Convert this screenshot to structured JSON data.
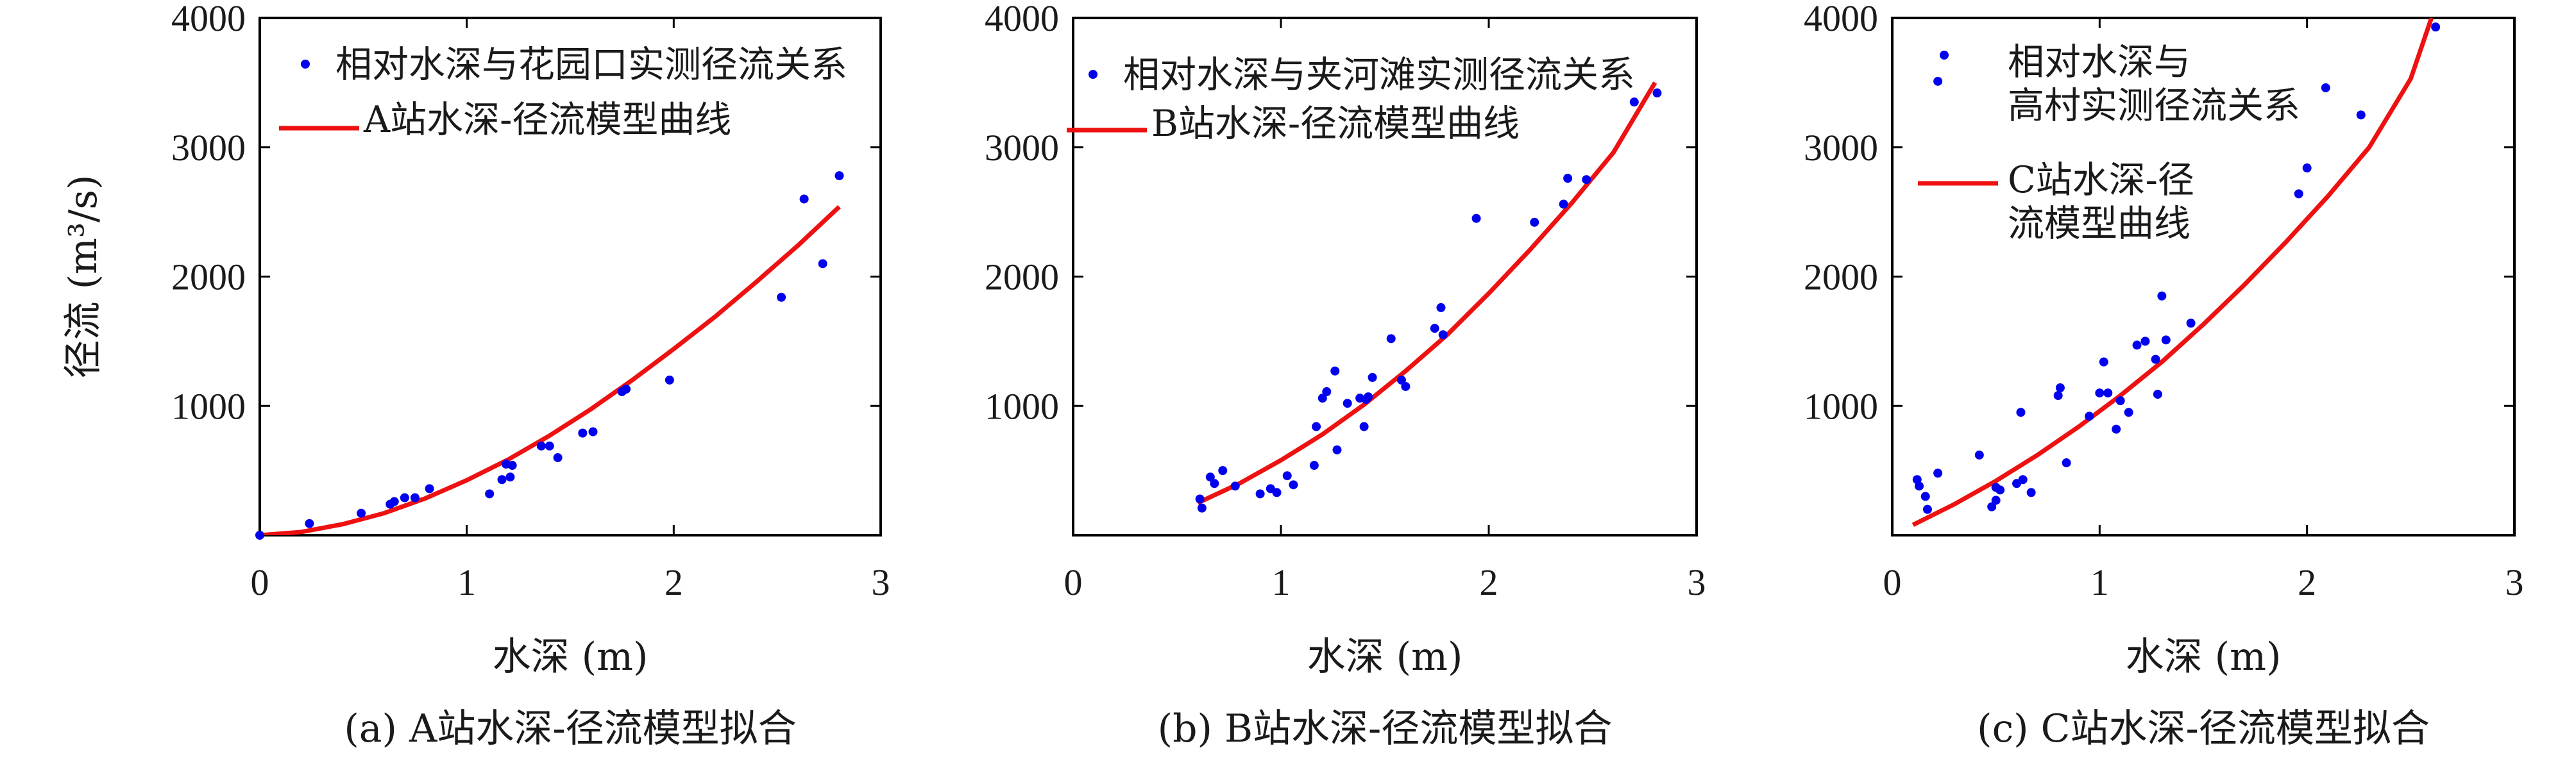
{
  "chart_data": [
    {
      "type": "scatter",
      "caption": "(a) A站水深-径流模型拟合",
      "xlabel": "水深 (m)",
      "ylabel": "径流 (m³/s)",
      "xlim": [
        0,
        3
      ],
      "ylim": [
        0,
        4000
      ],
      "xticks": [
        "0",
        "1",
        "2",
        "3"
      ],
      "yticks": [
        "1000",
        "2000",
        "3000",
        "4000"
      ],
      "legend": {
        "position": "top-left",
        "entries": [
          "相对水深与花园口实测径流关系",
          "A站水深-径流模型曲线"
        ]
      },
      "colors": {
        "points": "#0000ee",
        "curve": "#ee1111"
      },
      "series": [
        {
          "name": "相对水深与花园口实测径流关系",
          "kind": "scatter",
          "x": [
            0.0,
            0.24,
            0.49,
            0.63,
            0.65,
            0.7,
            0.75,
            0.82,
            1.11,
            1.17,
            1.19,
            1.21,
            1.22,
            1.36,
            1.4,
            1.44,
            1.56,
            1.61,
            1.75,
            1.77,
            1.98,
            2.52,
            2.63,
            2.72,
            2.8
          ],
          "y": [
            0,
            90,
            170,
            240,
            260,
            290,
            290,
            360,
            320,
            430,
            550,
            450,
            540,
            690,
            690,
            600,
            790,
            800,
            1110,
            1130,
            1200,
            1840,
            2600,
            2100,
            2780
          ]
        },
        {
          "name": "A站水深-径流模型曲线",
          "kind": "line",
          "x": [
            0,
            0.2,
            0.4,
            0.6,
            0.8,
            1.0,
            1.2,
            1.4,
            1.6,
            1.8,
            2.0,
            2.2,
            2.4,
            2.6,
            2.8
          ],
          "y": [
            0,
            25,
            85,
            170,
            285,
            425,
            585,
            770,
            975,
            1200,
            1440,
            1690,
            1960,
            2240,
            2540
          ]
        }
      ]
    },
    {
      "type": "scatter",
      "caption": "(b) B站水深-径流模型拟合",
      "xlabel": "水深 (m)",
      "ylabel": "",
      "xlim": [
        0,
        3
      ],
      "ylim": [
        0,
        4000
      ],
      "xticks": [
        "0",
        "1",
        "2",
        "3"
      ],
      "yticks": [
        "1000",
        "2000",
        "3000",
        "4000"
      ],
      "legend": {
        "position": "top-left",
        "entries": [
          "相对水深与夹河滩实测径流关系",
          "B站水深-径流模型曲线"
        ]
      },
      "colors": {
        "points": "#0000ee",
        "curve": "#ee1111"
      },
      "series": [
        {
          "name": "相对水深与夹河滩实测径流关系",
          "kind": "scatter",
          "x": [
            0.61,
            0.62,
            0.66,
            0.68,
            0.72,
            0.78,
            0.9,
            0.95,
            0.98,
            1.03,
            1.06,
            1.16,
            1.17,
            1.2,
            1.22,
            1.26,
            1.27,
            1.32,
            1.38,
            1.4,
            1.41,
            1.42,
            1.44,
            1.53,
            1.58,
            1.6,
            1.74,
            1.77,
            1.78,
            1.94,
            2.22,
            2.36,
            2.38,
            2.47,
            2.7,
            2.81
          ],
          "y": [
            280,
            210,
            450,
            400,
            500,
            380,
            320,
            360,
            330,
            460,
            390,
            540,
            840,
            1060,
            1110,
            1270,
            660,
            1020,
            1060,
            840,
            1050,
            1070,
            1220,
            1520,
            1200,
            1150,
            1600,
            1760,
            1550,
            2450,
            2420,
            2560,
            2760,
            2750,
            3350,
            3420
          ]
        },
        {
          "name": "B站水深-径流模型曲线",
          "kind": "line",
          "x": [
            0.6,
            0.8,
            1.0,
            1.2,
            1.4,
            1.6,
            1.8,
            2.0,
            2.2,
            2.4,
            2.6,
            2.8
          ],
          "y": [
            250,
            400,
            580,
            780,
            1010,
            1270,
            1550,
            1870,
            2210,
            2570,
            2960,
            3500
          ]
        }
      ]
    },
    {
      "type": "scatter",
      "caption": "(c) C站水深-径流模型拟合",
      "xlabel": "水深 (m)",
      "ylabel": "",
      "xlim": [
        0,
        3
      ],
      "ylim": [
        0,
        4000
      ],
      "xticks": [
        "0",
        "1",
        "2",
        "3"
      ],
      "yticks": [
        "1000",
        "2000",
        "3000",
        "4000"
      ],
      "legend": {
        "position": "top-left",
        "entries": [
          "相对水深与高村实测径流关系",
          "C站水深-径流模型曲线"
        ]
      },
      "colors": {
        "points": "#0000ee",
        "curve": "#ee1111"
      },
      "series": [
        {
          "name": "相对水深与高村实测径流关系",
          "kind": "scatter",
          "x": [
            0.12,
            0.13,
            0.16,
            0.17,
            0.22,
            0.22,
            0.42,
            0.48,
            0.5,
            0.5,
            0.52,
            0.6,
            0.62,
            0.63,
            0.67,
            0.8,
            0.81,
            0.84,
            0.95,
            1.0,
            1.02,
            1.04,
            1.08,
            1.1,
            1.14,
            1.18,
            1.22,
            1.27,
            1.28,
            1.3,
            1.32,
            1.44,
            1.96,
            2.0,
            2.09,
            2.26,
            2.62
          ],
          "y": [
            430,
            380,
            300,
            200,
            3510,
            480,
            620,
            220,
            270,
            370,
            350,
            400,
            950,
            430,
            330,
            1080,
            1140,
            560,
            920,
            1100,
            1340,
            1100,
            820,
            1040,
            950,
            1470,
            1500,
            1360,
            1090,
            1850,
            1510,
            1640,
            2640,
            2840,
            3460,
            3250,
            3930
          ]
        },
        {
          "name": "C站水深-径流模型曲线",
          "kind": "line",
          "x": [
            0.1,
            0.3,
            0.5,
            0.7,
            0.9,
            1.1,
            1.3,
            1.5,
            1.7,
            1.9,
            2.1,
            2.3,
            2.5,
            2.6
          ],
          "y": [
            80,
            240,
            420,
            620,
            840,
            1080,
            1340,
            1630,
            1940,
            2270,
            2620,
            3000,
            3530,
            4000
          ]
        }
      ]
    }
  ]
}
